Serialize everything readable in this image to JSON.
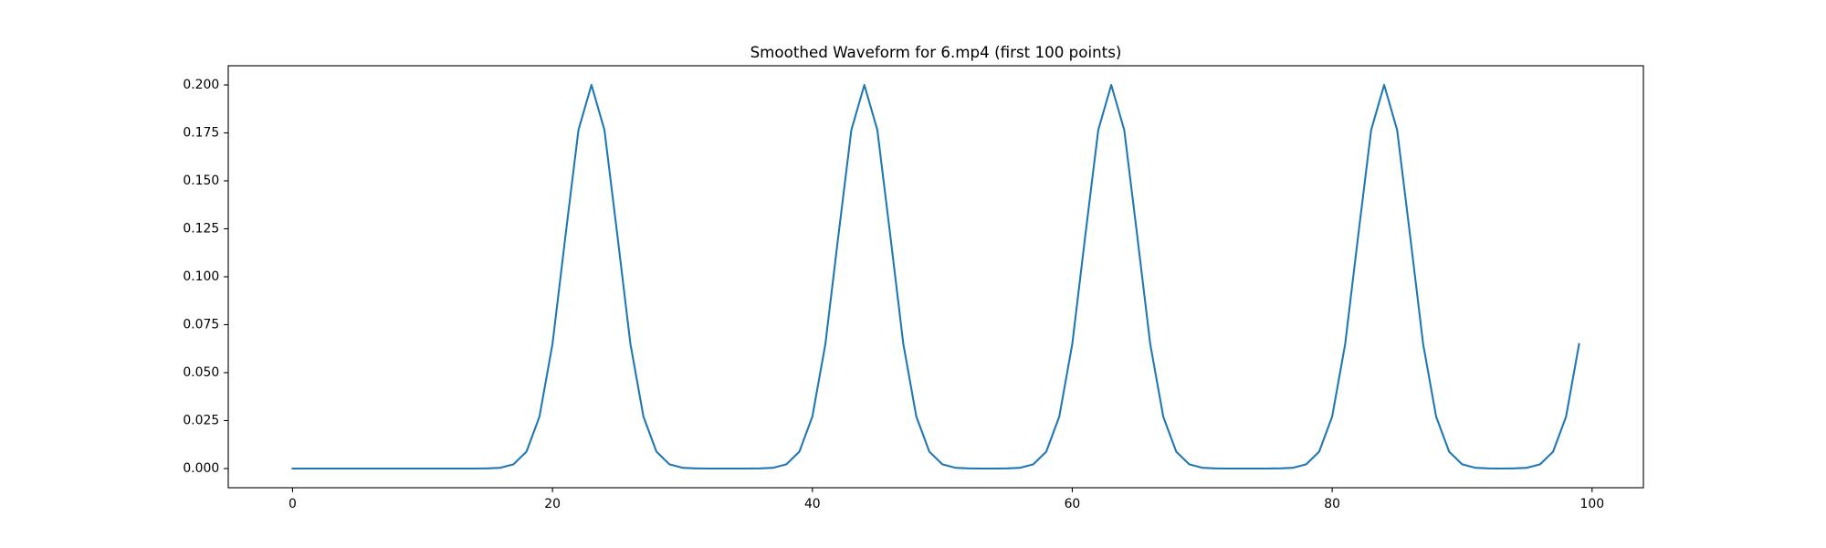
{
  "chart_data": {
    "type": "line",
    "title": "Smoothed Waveform for 6.mp4 (first 100 points)",
    "x": [
      0,
      1,
      2,
      3,
      4,
      5,
      6,
      7,
      8,
      9,
      10,
      11,
      12,
      13,
      14,
      15,
      16,
      17,
      18,
      19,
      20,
      21,
      22,
      23,
      24,
      25,
      26,
      27,
      28,
      29,
      30,
      31,
      32,
      33,
      34,
      35,
      36,
      37,
      38,
      39,
      40,
      41,
      42,
      43,
      44,
      45,
      46,
      47,
      48,
      49,
      50,
      51,
      52,
      53,
      54,
      55,
      56,
      57,
      58,
      59,
      60,
      61,
      62,
      63,
      64,
      65,
      66,
      67,
      68,
      69,
      70,
      71,
      72,
      73,
      74,
      75,
      76,
      77,
      78,
      79,
      80,
      81,
      82,
      83,
      84,
      85,
      86,
      87,
      88,
      89,
      90,
      91,
      92,
      93,
      94,
      95,
      96,
      97,
      98,
      99
    ],
    "series": [
      {
        "color": "#1f77b4",
        "values": [
          0,
          0,
          0,
          0,
          0,
          0,
          0,
          0,
          0,
          0,
          0,
          0,
          0,
          0,
          0,
          0.0001,
          0.0004,
          0.0022,
          0.0088,
          0.0271,
          0.0649,
          0.1213,
          0.1765,
          0.2,
          0.1765,
          0.1213,
          0.0649,
          0.0271,
          0.0088,
          0.0022,
          0.0004,
          0.0001,
          0,
          0,
          0,
          0,
          0.0001,
          0.0004,
          0.0022,
          0.0088,
          0.0271,
          0.0649,
          0.1213,
          0.1765,
          0.2,
          0.1765,
          0.1213,
          0.0649,
          0.0271,
          0.0088,
          0.0022,
          0.0004,
          0.0001,
          0,
          0,
          0.0001,
          0.0004,
          0.0022,
          0.0088,
          0.0271,
          0.0649,
          0.1213,
          0.1765,
          0.2,
          0.1765,
          0.1213,
          0.0649,
          0.0271,
          0.0088,
          0.0022,
          0.0004,
          0.0001,
          0,
          0,
          0,
          0,
          0.0001,
          0.0004,
          0.0022,
          0.0088,
          0.0271,
          0.0649,
          0.1213,
          0.1765,
          0.2,
          0.1765,
          0.1213,
          0.0649,
          0.0271,
          0.0088,
          0.0022,
          0.0004,
          0.0001,
          0,
          0.0001,
          0.0004,
          0.0022,
          0.0088,
          0.0271,
          0.0649
        ]
      }
    ],
    "xlim": [
      -4.95,
      103.95
    ],
    "xticks": [
      0,
      20,
      40,
      60,
      80,
      100
    ],
    "ylim": [
      -0.01,
      0.21
    ],
    "yticks": [
      {
        "value": 0,
        "label": "0.000"
      },
      {
        "value": 0.025,
        "label": "0.025"
      },
      {
        "value": 0.05,
        "label": "0.050"
      },
      {
        "value": 0.075,
        "label": "0.075"
      },
      {
        "value": 0.1,
        "label": "0.100"
      },
      {
        "value": 0.125,
        "label": "0.125"
      },
      {
        "value": 0.15,
        "label": "0.150"
      },
      {
        "value": 0.175,
        "label": "0.175"
      },
      {
        "value": 0.2,
        "label": "0.200"
      }
    ],
    "grid": false
  }
}
